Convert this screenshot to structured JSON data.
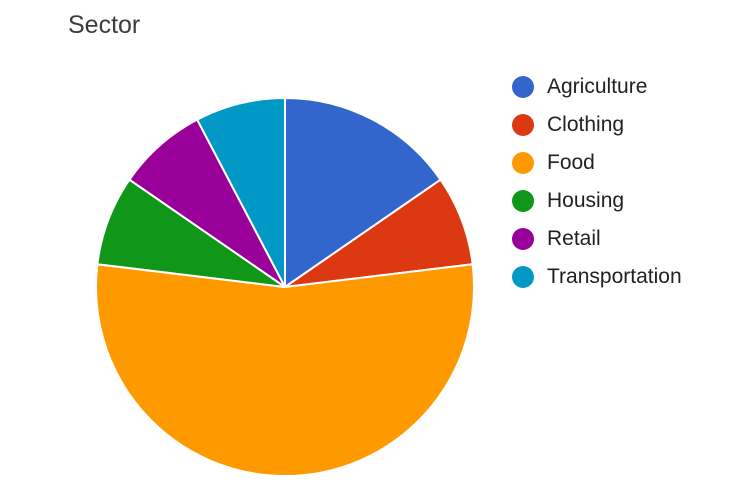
{
  "chart_data": {
    "type": "pie",
    "title": "Sector",
    "categories": [
      "Agriculture",
      "Clothing",
      "Food",
      "Housing",
      "Retail",
      "Transportation"
    ],
    "values": [
      2,
      1,
      7,
      1,
      1,
      1
    ],
    "colors": [
      "#3366cc",
      "#dc3912",
      "#ff9900",
      "#109618",
      "#990099",
      "#0099c6"
    ],
    "legend_position": "right",
    "start_angle": "12 o'clock, clockwise"
  }
}
